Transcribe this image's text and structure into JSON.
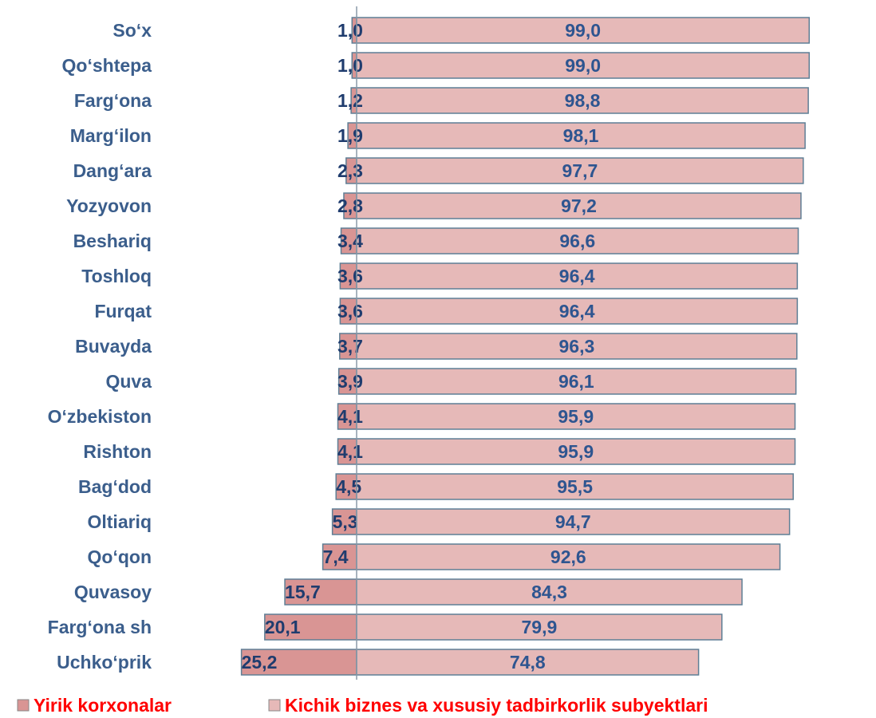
{
  "chart_data": {
    "type": "bar",
    "orientation": "horizontal",
    "diverging": true,
    "categories": [
      "So‘x",
      "Qo‘shtepa",
      "Farg‘ona",
      "Marg‘ilon",
      "Dang‘ara",
      "Yozyovon",
      "Beshariq",
      "Toshloq",
      "Furqat",
      "Buvayda",
      "Quva",
      "O‘zbekiston",
      "Rishton",
      "Bag‘dod",
      "Oltiariq",
      "Qo‘qon",
      "Quvasoy",
      "Farg‘ona sh",
      "Uchko‘prik"
    ],
    "series": [
      {
        "name": "Yirik korxonalar",
        "color": "#d99594",
        "values": [
          1.0,
          1.0,
          1.2,
          1.9,
          2.3,
          2.8,
          3.4,
          3.6,
          3.6,
          3.7,
          3.9,
          4.1,
          4.1,
          4.5,
          5.3,
          7.4,
          15.7,
          20.1,
          25.2
        ],
        "value_labels": [
          "1,0",
          "1,0",
          "1,2",
          "1,9",
          "2,3",
          "2,8",
          "3,4",
          "3,6",
          "3,6",
          "3,7",
          "3,9",
          "4,1",
          "4,1",
          "4,5",
          "5,3",
          "7,4",
          "15,7",
          "20,1",
          "25,2"
        ]
      },
      {
        "name": "Kichik biznes va xususiy tadbirkorlik subyektlari",
        "color": "#e6b9b8",
        "values": [
          99.0,
          99.0,
          98.8,
          98.1,
          97.7,
          97.2,
          96.6,
          96.4,
          96.4,
          96.3,
          96.1,
          95.9,
          95.9,
          95.5,
          94.7,
          92.6,
          84.3,
          79.9,
          74.8
        ],
        "value_labels": [
          "99,0",
          "99,0",
          "98,8",
          "98,1",
          "97,7",
          "97,2",
          "96,6",
          "96,4",
          "96,4",
          "96,3",
          "96,1",
          "95,9",
          "95,9",
          "95,5",
          "94,7",
          "92,6",
          "84,3",
          "79,9",
          "74,8"
        ]
      }
    ],
    "legend": "bottom"
  }
}
